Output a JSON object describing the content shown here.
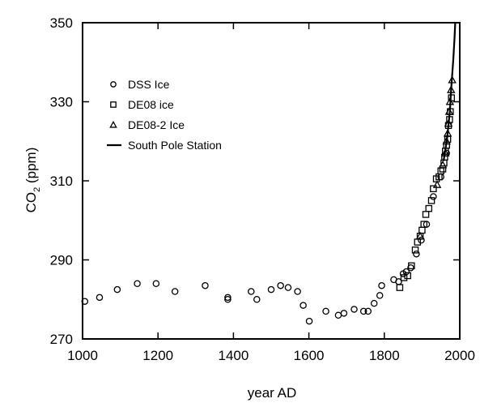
{
  "chart_data": {
    "type": "scatter",
    "xlabel": "year AD",
    "ylabel": "CO",
    "ylabel_sub": "2",
    "ylabel_unit": " (ppm)",
    "xlim": [
      1000,
      2000
    ],
    "ylim": [
      270,
      350
    ],
    "x_ticks": [
      "1000",
      "1200",
      "1400",
      "1600",
      "1800",
      "2000"
    ],
    "y_ticks": [
      "270",
      "290",
      "310",
      "330",
      "350"
    ],
    "grid": false,
    "legend_position": "top-left",
    "series": [
      {
        "name": "DSS Ice",
        "marker": "circle",
        "points": [
          [
            1006,
            279.5
          ],
          [
            1045,
            280.5
          ],
          [
            1092,
            282.5
          ],
          [
            1145,
            284
          ],
          [
            1195,
            284
          ],
          [
            1245,
            282
          ],
          [
            1325,
            283.5
          ],
          [
            1385,
            280
          ],
          [
            1385,
            280.5
          ],
          [
            1447,
            282
          ],
          [
            1462,
            280
          ],
          [
            1500,
            282.5
          ],
          [
            1525,
            283.5
          ],
          [
            1545,
            283
          ],
          [
            1570,
            282
          ],
          [
            1585,
            278.5
          ],
          [
            1601,
            274.5
          ],
          [
            1645,
            277
          ],
          [
            1678,
            276
          ],
          [
            1693,
            276.5
          ],
          [
            1720,
            277.5
          ],
          [
            1745,
            277
          ],
          [
            1757,
            277
          ],
          [
            1773,
            279
          ],
          [
            1788,
            281
          ],
          [
            1793,
            283.5
          ],
          [
            1825,
            285
          ],
          [
            1838,
            284.5
          ],
          [
            1850,
            286.5
          ],
          [
            1858,
            287
          ],
          [
            1870,
            288
          ],
          [
            1885,
            291.5
          ],
          [
            1898,
            295
          ],
          [
            1912,
            299
          ],
          [
            1930,
            306
          ],
          [
            1950,
            311
          ],
          [
            1965,
            317
          ]
        ]
      },
      {
        "name": "DE08 ice",
        "marker": "square",
        "points": [
          [
            1841,
            283
          ],
          [
            1852,
            285.5
          ],
          [
            1862,
            286
          ],
          [
            1872,
            288.5
          ],
          [
            1882,
            292.5
          ],
          [
            1888,
            294.5
          ],
          [
            1895,
            296
          ],
          [
            1900,
            297.5
          ],
          [
            1905,
            299
          ],
          [
            1910,
            301.5
          ],
          [
            1918,
            303
          ],
          [
            1925,
            305
          ],
          [
            1930,
            308
          ],
          [
            1938,
            310.5
          ],
          [
            1945,
            311
          ],
          [
            1950,
            312.5
          ],
          [
            1955,
            313
          ],
          [
            1958,
            314.5
          ],
          [
            1960,
            316
          ],
          [
            1962,
            317.5
          ],
          [
            1965,
            319
          ],
          [
            1968,
            320.5
          ],
          [
            1970,
            324
          ],
          [
            1973,
            325.5
          ],
          [
            1975,
            327.5
          ],
          [
            1978,
            331
          ]
        ]
      },
      {
        "name": "DE08-2 Ice",
        "marker": "triangle",
        "points": [
          [
            1895,
            296
          ],
          [
            1940,
            309
          ],
          [
            1955,
            314
          ],
          [
            1962,
            317
          ],
          [
            1965,
            320
          ],
          [
            1968,
            322
          ],
          [
            1970,
            324.5
          ],
          [
            1972,
            327.5
          ],
          [
            1974,
            330
          ],
          [
            1977,
            333
          ],
          [
            1980,
            335.5
          ]
        ]
      },
      {
        "name": "South Pole Station",
        "marker": "line",
        "points": [
          [
            1957,
            315
          ],
          [
            1962,
            318
          ],
          [
            1966,
            320.5
          ],
          [
            1970,
            324
          ],
          [
            1974,
            328
          ],
          [
            1977,
            333
          ],
          [
            1980,
            337
          ],
          [
            1983,
            341
          ],
          [
            1986,
            346
          ],
          [
            1988,
            350
          ]
        ]
      }
    ]
  }
}
